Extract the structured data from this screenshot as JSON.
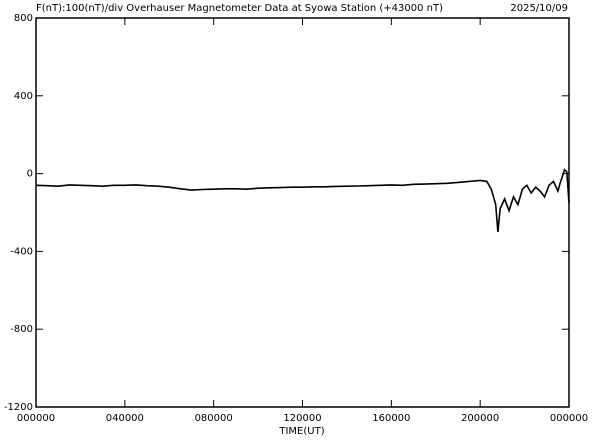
{
  "chart_data": {
    "type": "line",
    "title": "F(nT):100(nT)/div  Overhauser Magnetometer Data at Syowa Station (+43000 nT)",
    "date": "2025/10/09",
    "x_label": "TIME(UT)",
    "x": [
      0,
      0.5,
      1,
      1.5,
      2,
      2.5,
      3,
      3.5,
      4,
      4.5,
      5,
      5.5,
      6,
      6.5,
      7,
      7.5,
      8,
      8.5,
      9,
      9.5,
      10,
      10.5,
      11,
      11.5,
      12,
      12.5,
      13,
      13.5,
      14,
      14.5,
      15,
      15.5,
      16,
      16.5,
      17,
      17.5,
      18,
      18.5,
      19,
      19.5,
      20,
      20.3,
      20.5,
      20.7,
      20.8,
      20.9,
      21.1,
      21.3,
      21.5,
      21.7,
      21.9,
      22.1,
      22.3,
      22.5,
      22.7,
      22.9,
      23.1,
      23.3,
      23.5,
      23.6,
      23.8,
      23.9,
      24
    ],
    "values": [
      -60,
      -62,
      -65,
      -58,
      -60,
      -62,
      -65,
      -60,
      -60,
      -58,
      -62,
      -65,
      -70,
      -78,
      -85,
      -82,
      -80,
      -78,
      -78,
      -80,
      -75,
      -73,
      -72,
      -70,
      -70,
      -68,
      -68,
      -66,
      -65,
      -64,
      -62,
      -60,
      -58,
      -60,
      -55,
      -54,
      -52,
      -50,
      -45,
      -40,
      -35,
      -40,
      -80,
      -160,
      -300,
      -180,
      -130,
      -190,
      -120,
      -160,
      -80,
      -60,
      -100,
      -70,
      -90,
      -120,
      -60,
      -40,
      -90,
      -50,
      20,
      10,
      -150
    ],
    "color": "#000000",
    "xlim": [
      0,
      24
    ],
    "ylim": [
      -1200,
      800
    ],
    "xticks": [
      {
        "value": 0,
        "label": "000000"
      },
      {
        "value": 4,
        "label": "040000"
      },
      {
        "value": 8,
        "label": "080000"
      },
      {
        "value": 12,
        "label": "120000"
      },
      {
        "value": 16,
        "label": "160000"
      },
      {
        "value": 20,
        "label": "200000"
      },
      {
        "value": 24,
        "label": "000000"
      }
    ],
    "yticks": [
      -1200,
      -800,
      -400,
      0,
      400,
      800
    ]
  }
}
